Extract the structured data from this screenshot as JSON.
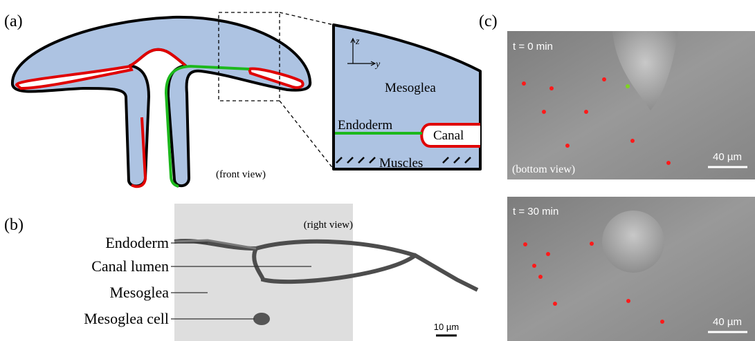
{
  "panel_a": {
    "label": "(a)",
    "view": "(front view)",
    "inset": {
      "axis_z": "z",
      "axis_y": "y",
      "mesoglea": "Mesoglea",
      "endoderm": "Endoderm",
      "canal": "Canal",
      "muscles": "Muscles"
    }
  },
  "panel_b": {
    "label": "(b)",
    "view": "(right view)",
    "labels": [
      "Endoderm",
      "Canal lumen",
      "Mesoglea",
      "Mesoglea cell"
    ],
    "scale_bar": "10 µm"
  },
  "panel_c": {
    "label": "(c)",
    "view": "(bottom view)",
    "frames": [
      {
        "time": "t = 0 min",
        "scale_bar": "40 µm"
      },
      {
        "time": "t = 30 min",
        "scale_bar": "40 µm"
      }
    ]
  }
}
